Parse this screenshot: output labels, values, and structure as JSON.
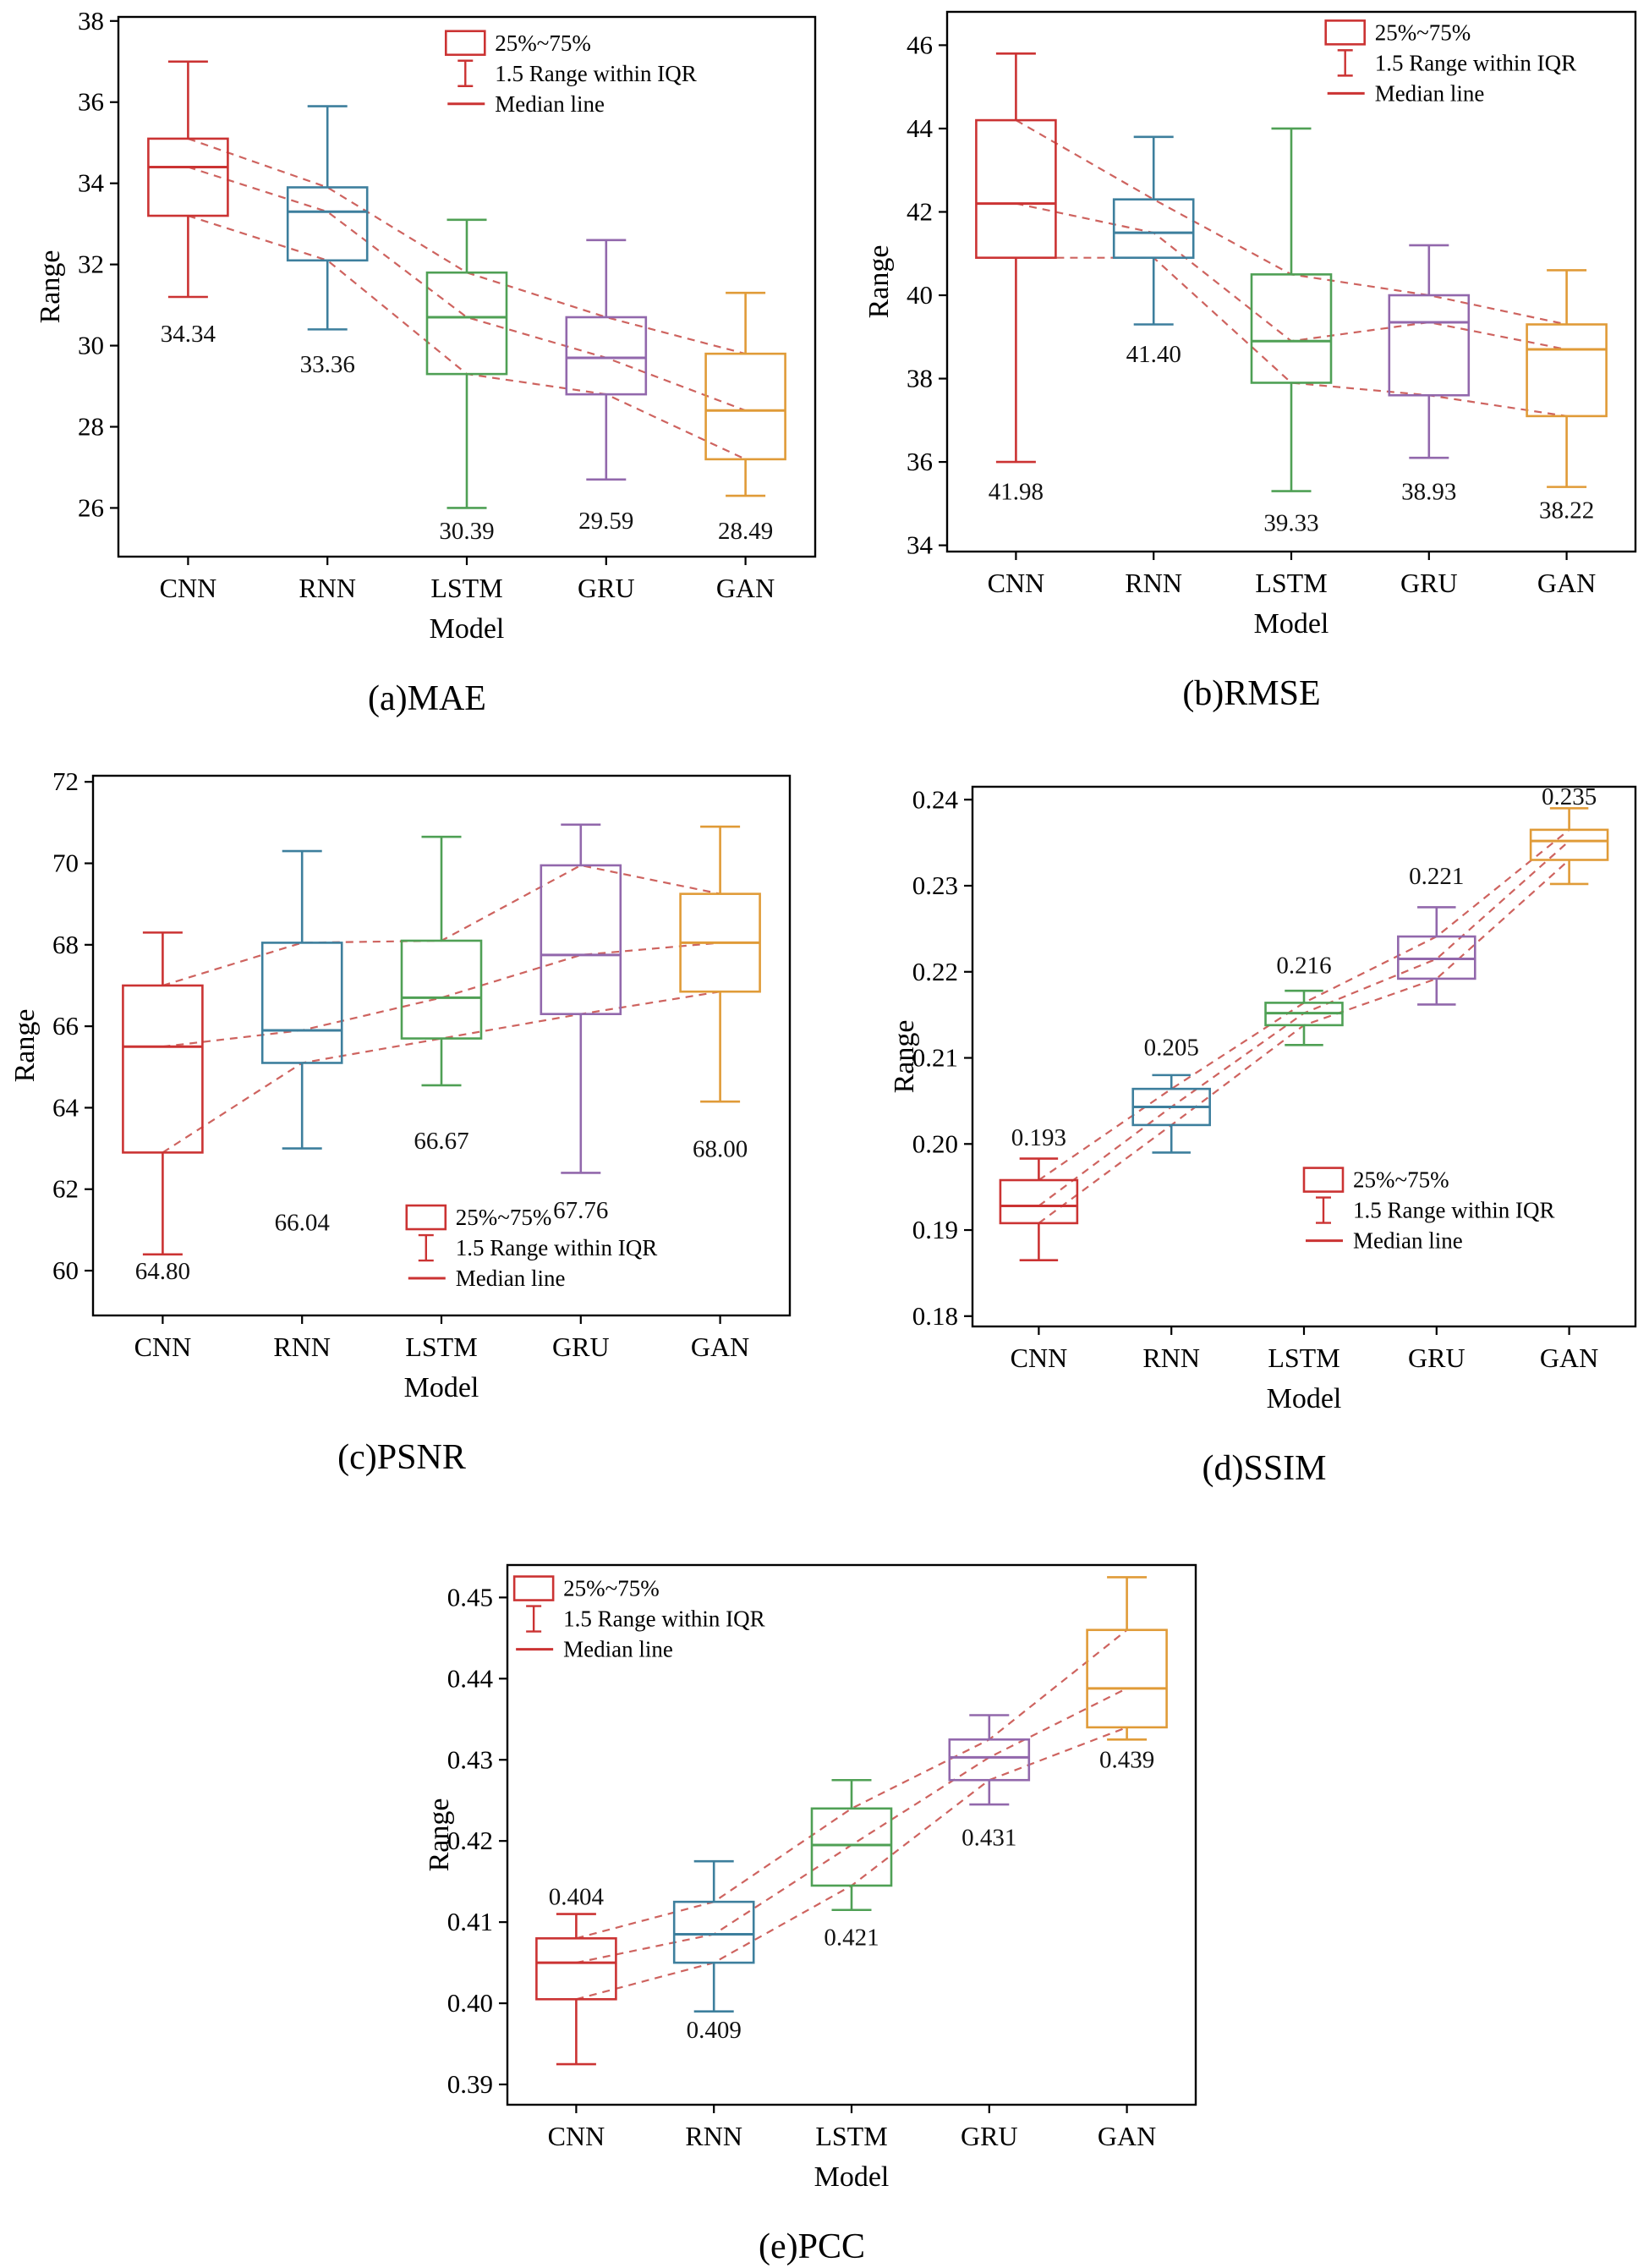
{
  "legend_labels": [
    "25%~75%",
    "1.5 Range within IQR",
    "Median line"
  ],
  "colors": {
    "models": {
      "CNN": "#cb3333",
      "RNN": "#3d7f9d",
      "LSTM": "#4fa055",
      "GRU": "#9268ac",
      "GAN": "#e09b38"
    },
    "trend": "#c9524e",
    "legend": "#cb3333",
    "axis": "#000000"
  },
  "chart_data": [
    {
      "type": "box",
      "caption": "(a)MAE",
      "xlabel": "Model",
      "ylabel": "Range",
      "ylim": [
        24.8,
        38.1
      ],
      "yticks": [
        26,
        28,
        30,
        32,
        34,
        36,
        38
      ],
      "ytick_labels": [
        "26",
        "28",
        "30",
        "32",
        "34",
        "36",
        "38"
      ],
      "categories": [
        "CNN",
        "RNN",
        "LSTM",
        "GRU",
        "GAN"
      ],
      "legend": {
        "x": 0.47,
        "y": 0.02
      },
      "boxes": [
        {
          "model": "CNN",
          "whislo": 31.2,
          "q1": 33.2,
          "med": 34.4,
          "q3": 35.1,
          "whishi": 37.0,
          "label": "34.34",
          "label_y": 30.3
        },
        {
          "model": "RNN",
          "whislo": 30.4,
          "q1": 32.1,
          "med": 33.3,
          "q3": 33.9,
          "whishi": 35.9,
          "label": "33.36",
          "label_y": 29.55
        },
        {
          "model": "LSTM",
          "whislo": 26.0,
          "q1": 29.3,
          "med": 30.7,
          "q3": 31.8,
          "whishi": 33.1,
          "label": "30.39",
          "label_y": 25.45
        },
        {
          "model": "GRU",
          "whislo": 26.7,
          "q1": 28.8,
          "med": 29.7,
          "q3": 30.7,
          "whishi": 32.6,
          "label": "29.59",
          "label_y": 25.7
        },
        {
          "model": "GAN",
          "whislo": 26.3,
          "q1": 27.2,
          "med": 28.4,
          "q3": 29.8,
          "whishi": 31.3,
          "label": "28.49",
          "label_y": 25.45
        }
      ]
    },
    {
      "type": "box",
      "caption": "(b)RMSE",
      "xlabel": "Model",
      "ylabel": "Range",
      "ylim": [
        33.85,
        46.8
      ],
      "yticks": [
        34,
        36,
        38,
        40,
        42,
        44,
        46
      ],
      "ytick_labels": [
        "34",
        "36",
        "38",
        "40",
        "42",
        "44",
        "46"
      ],
      "categories": [
        "CNN",
        "RNN",
        "LSTM",
        "GRU",
        "GAN"
      ],
      "legend": {
        "x": 0.55,
        "y": 0.01
      },
      "boxes": [
        {
          "model": "CNN",
          "whislo": 36.0,
          "q1": 40.9,
          "med": 42.2,
          "q3": 44.2,
          "whishi": 45.8,
          "label": "41.98",
          "label_y": 35.3
        },
        {
          "model": "RNN",
          "whislo": 39.3,
          "q1": 40.9,
          "med": 41.5,
          "q3": 42.3,
          "whishi": 43.8,
          "label": "41.40",
          "label_y": 38.6
        },
        {
          "model": "LSTM",
          "whislo": 35.3,
          "q1": 37.9,
          "med": 38.9,
          "q3": 40.5,
          "whishi": 44.0,
          "label": "39.33",
          "label_y": 34.55
        },
        {
          "model": "GRU",
          "whislo": 36.1,
          "q1": 37.6,
          "med": 39.35,
          "q3": 40.0,
          "whishi": 41.2,
          "label": "38.93",
          "label_y": 35.3
        },
        {
          "model": "GAN",
          "whislo": 35.4,
          "q1": 37.1,
          "med": 38.7,
          "q3": 39.3,
          "whishi": 40.6,
          "label": "38.22",
          "label_y": 34.85
        }
      ]
    },
    {
      "type": "box",
      "caption": "(c)PSNR",
      "xlabel": "Model",
      "ylabel": "Range",
      "ylim": [
        58.9,
        72.15
      ],
      "yticks": [
        60,
        62,
        64,
        66,
        68,
        70,
        72
      ],
      "ytick_labels": [
        "60",
        "62",
        "64",
        "66",
        "68",
        "70",
        "72"
      ],
      "categories": [
        "CNN",
        "RNN",
        "LSTM",
        "GRU",
        "GAN"
      ],
      "legend": {
        "x": 0.45,
        "y": 0.79
      },
      "boxes": [
        {
          "model": "CNN",
          "whislo": 60.4,
          "q1": 62.9,
          "med": 65.5,
          "q3": 67.0,
          "whishi": 68.3,
          "label": "64.80",
          "label_y": 60.0
        },
        {
          "model": "RNN",
          "whislo": 63.0,
          "q1": 65.1,
          "med": 65.9,
          "q3": 68.05,
          "whishi": 70.3,
          "label": "66.04",
          "label_y": 61.2
        },
        {
          "model": "LSTM",
          "whislo": 64.55,
          "q1": 65.7,
          "med": 66.7,
          "q3": 68.1,
          "whishi": 70.65,
          "label": "66.67",
          "label_y": 63.2
        },
        {
          "model": "GRU",
          "whislo": 62.4,
          "q1": 66.3,
          "med": 67.75,
          "q3": 69.95,
          "whishi": 70.95,
          "label": "67.76",
          "label_y": 61.5
        },
        {
          "model": "GAN",
          "whislo": 64.15,
          "q1": 66.85,
          "med": 68.05,
          "q3": 69.25,
          "whishi": 70.9,
          "label": "68.00",
          "label_y": 63.0
        }
      ]
    },
    {
      "type": "box",
      "caption": "(d)SSIM",
      "xlabel": "Model",
      "ylabel": "Range",
      "ylim": [
        0.1788,
        0.2415
      ],
      "yticks": [
        0.18,
        0.19,
        0.2,
        0.21,
        0.22,
        0.23,
        0.24
      ],
      "ytick_labels": [
        "0.18",
        "0.19",
        "0.20",
        "0.21",
        "0.22",
        "0.23",
        "0.24"
      ],
      "categories": [
        "CNN",
        "RNN",
        "LSTM",
        "GRU",
        "GAN"
      ],
      "legend": {
        "x": 0.5,
        "y": 0.7
      },
      "boxes": [
        {
          "model": "CNN",
          "whislo": 0.1865,
          "q1": 0.1908,
          "med": 0.1928,
          "q3": 0.1958,
          "whishi": 0.1983,
          "label": "0.193",
          "label_y": 0.2008
        },
        {
          "model": "RNN",
          "whislo": 0.199,
          "q1": 0.2022,
          "med": 0.2043,
          "q3": 0.2064,
          "whishi": 0.208,
          "label": "0.205",
          "label_y": 0.2113
        },
        {
          "model": "LSTM",
          "whislo": 0.2115,
          "q1": 0.2138,
          "med": 0.2152,
          "q3": 0.2164,
          "whishi": 0.2178,
          "label": "0.216",
          "label_y": 0.2208
        },
        {
          "model": "GRU",
          "whislo": 0.2162,
          "q1": 0.2192,
          "med": 0.2215,
          "q3": 0.2241,
          "whishi": 0.2275,
          "label": "0.221",
          "label_y": 0.2312
        },
        {
          "model": "GAN",
          "whislo": 0.2302,
          "q1": 0.233,
          "med": 0.2352,
          "q3": 0.2365,
          "whishi": 0.239,
          "label": "0.235",
          "label_y": 0.2404
        }
      ]
    },
    {
      "type": "box",
      "caption": "(e)PCC",
      "xlabel": "Model",
      "ylabel": "Range",
      "ylim": [
        0.3875,
        0.454
      ],
      "yticks": [
        0.39,
        0.4,
        0.41,
        0.42,
        0.43,
        0.44,
        0.45
      ],
      "ytick_labels": [
        "0.39",
        "0.40",
        "0.41",
        "0.42",
        "0.43",
        "0.44",
        "0.45"
      ],
      "categories": [
        "CNN",
        "RNN",
        "LSTM",
        "GRU",
        "GAN"
      ],
      "legend": {
        "x": 0.01,
        "y": 0.015
      },
      "boxes": [
        {
          "model": "CNN",
          "whislo": 0.3925,
          "q1": 0.4005,
          "med": 0.405,
          "q3": 0.408,
          "whishi": 0.411,
          "label": "0.404",
          "label_y": 0.4132
        },
        {
          "model": "RNN",
          "whislo": 0.399,
          "q1": 0.405,
          "med": 0.4085,
          "q3": 0.4125,
          "whishi": 0.4175,
          "label": "0.409",
          "label_y": 0.3968
        },
        {
          "model": "LSTM",
          "whislo": 0.4115,
          "q1": 0.4145,
          "med": 0.4195,
          "q3": 0.424,
          "whishi": 0.4275,
          "label": "0.421",
          "label_y": 0.4082
        },
        {
          "model": "GRU",
          "whislo": 0.4245,
          "q1": 0.4275,
          "med": 0.4303,
          "q3": 0.4325,
          "whishi": 0.4355,
          "label": "0.431",
          "label_y": 0.4205
        },
        {
          "model": "GAN",
          "whislo": 0.4325,
          "q1": 0.434,
          "med": 0.4388,
          "q3": 0.446,
          "whishi": 0.4525,
          "label": "0.439",
          "label_y": 0.4301
        }
      ]
    }
  ]
}
